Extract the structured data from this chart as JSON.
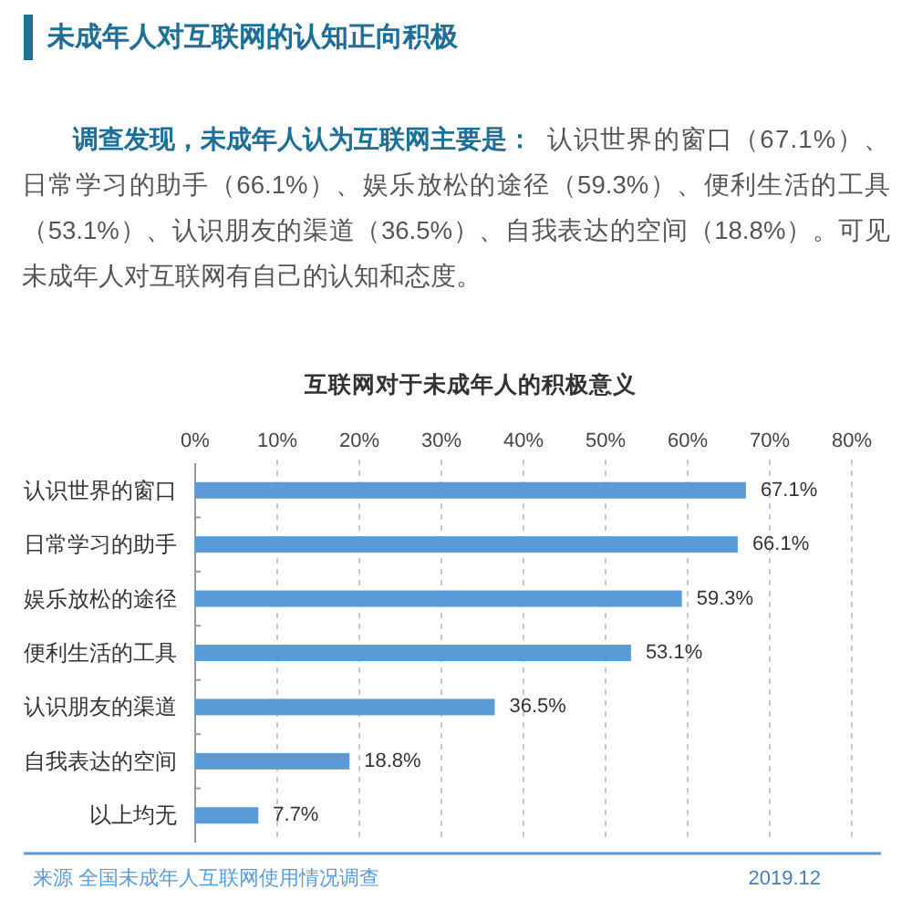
{
  "chart_data": {
    "type": "bar",
    "orientation": "horizontal",
    "title": "未成年人对互联网的认知正向积极",
    "subtitle": "互联网对于未成年人的积极意义",
    "categories": [
      "认识世界的窗口",
      "日常学习的助手",
      "娱乐放松的途径",
      "便利生活的工具",
      "认识朋友的渠道",
      "自我表达的空间",
      "以上均无"
    ],
    "values": [
      67.1,
      66.1,
      59.3,
      53.1,
      36.5,
      18.8,
      7.7
    ],
    "value_labels": [
      "67.1%",
      "66.1%",
      "59.3%",
      "53.1%",
      "36.5%",
      "18.8%",
      "7.7%"
    ],
    "color": "#5b9bd5",
    "xlim": [
      0,
      80
    ],
    "xticks": [
      {
        "value": 0,
        "label": "0%"
      },
      {
        "value": 10,
        "label": "10%"
      },
      {
        "value": 20,
        "label": "20%"
      },
      {
        "value": 30,
        "label": "30%"
      },
      {
        "value": 40,
        "label": "40%"
      },
      {
        "value": 50,
        "label": "50%"
      },
      {
        "value": 60,
        "label": "60%"
      },
      {
        "value": 70,
        "label": "70%"
      },
      {
        "value": 80,
        "label": "80%"
      }
    ],
    "grid": "x",
    "annotations": [
      "调查发现，未成年人认为互联网主要是：",
      "认识世界的窗口（67.1%）、",
      "日常学习的助手（66.1%）、娱乐放松的途径（59.3%）、便利生活的工具",
      "（53.1%）、认识朋友的渠道（36.5%）、自我表达的空间（18.8%）。可见",
      "未成年人对互联网有自己的认知和态度。",
      "来源 全国未成年人互联网使用情况调查",
      "2019.12"
    ]
  }
}
